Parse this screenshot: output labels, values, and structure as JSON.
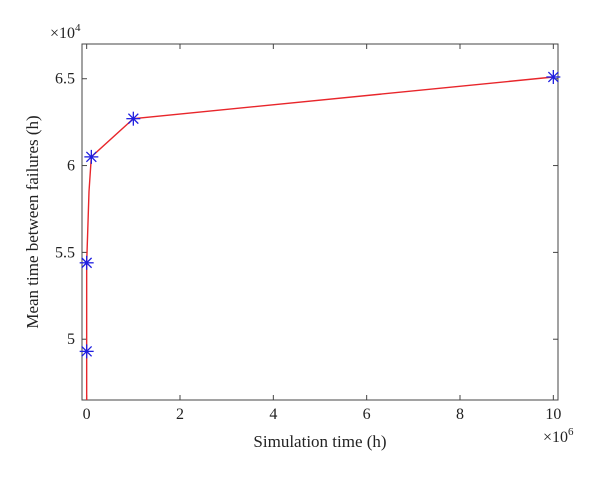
{
  "chart_data": {
    "type": "line",
    "xlabel": "Simulation time (h)",
    "ylabel": "Mean time between failures (h)",
    "x_multiplier_label": "×10",
    "x_multiplier_exp": "6",
    "y_multiplier_label": "×10",
    "y_multiplier_exp": "4",
    "xlim": [
      -0.1,
      10.1
    ],
    "ylim": [
      4.65,
      6.7
    ],
    "x_ticks": [
      {
        "value": 0,
        "label": "0"
      },
      {
        "value": 2,
        "label": "2"
      },
      {
        "value": 4,
        "label": "4"
      },
      {
        "value": 6,
        "label": "6"
      },
      {
        "value": 8,
        "label": "8"
      },
      {
        "value": 10,
        "label": "10"
      }
    ],
    "y_ticks": [
      {
        "value": 5,
        "label": "5"
      },
      {
        "value": 5.5,
        "label": "5.5"
      },
      {
        "value": 6,
        "label": "6"
      },
      {
        "value": 6.5,
        "label": "6.5"
      }
    ],
    "series": [
      {
        "line_color": "#e8262b",
        "marker_color": "#1f1fe0",
        "curve": [
          {
            "x": 0.0,
            "y": 4.65
          },
          {
            "x": 0.0,
            "y": 4.93
          },
          {
            "x": 0.0,
            "y": 5.44
          },
          {
            "x": 0.02,
            "y": 5.6
          },
          {
            "x": 0.05,
            "y": 5.85
          },
          {
            "x": 0.1,
            "y": 6.05
          },
          {
            "x": 1.0,
            "y": 6.27
          },
          {
            "x": 10.0,
            "y": 6.51
          }
        ],
        "markers": [
          {
            "x": 0.0,
            "y": 4.93
          },
          {
            "x": 0.0,
            "y": 5.44
          },
          {
            "x": 0.1,
            "y": 6.05
          },
          {
            "x": 1.0,
            "y": 6.27
          },
          {
            "x": 10.0,
            "y": 6.51
          }
        ]
      }
    ]
  }
}
